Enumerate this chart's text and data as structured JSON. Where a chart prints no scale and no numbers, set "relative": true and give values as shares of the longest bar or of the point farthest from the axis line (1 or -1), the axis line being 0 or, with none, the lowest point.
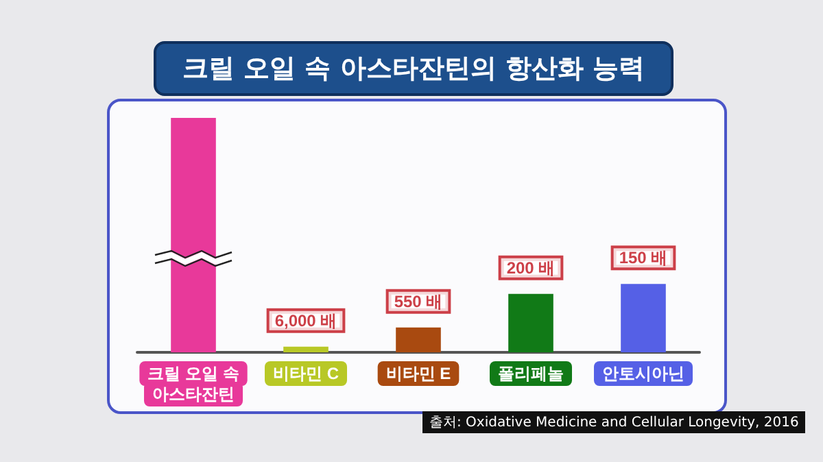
{
  "chart_data": {
    "type": "bar",
    "title": "크릴 오일 속 아스타잔틴의 항산화 능력",
    "relative": true,
    "categories": [
      "크릴 오일 속\n아스타잔틴",
      "비타민 C",
      "비타민 E",
      "폴리페놀",
      "안토시아닌"
    ],
    "values": [
      1,
      0.024,
      0.106,
      0.249,
      0.292
    ],
    "colors": [
      "#e8399a",
      "#b8c826",
      "#a94a10",
      "#117a17",
      "#5560e6"
    ],
    "annotations": [
      {
        "text": "6,000 배",
        "x": "비타민 C",
        "y": 0.024
      },
      {
        "text": "550 배",
        "x": "비타민 E",
        "y": 0.106
      },
      {
        "text": "200 배",
        "x": "폴리페놀",
        "y": 0.249
      },
      {
        "text": "150 배",
        "x": "안토시아닌",
        "y": 0.292
      },
      "출처: Oxidative Medicine and Cellular Longevity, 2016"
    ]
  }
}
